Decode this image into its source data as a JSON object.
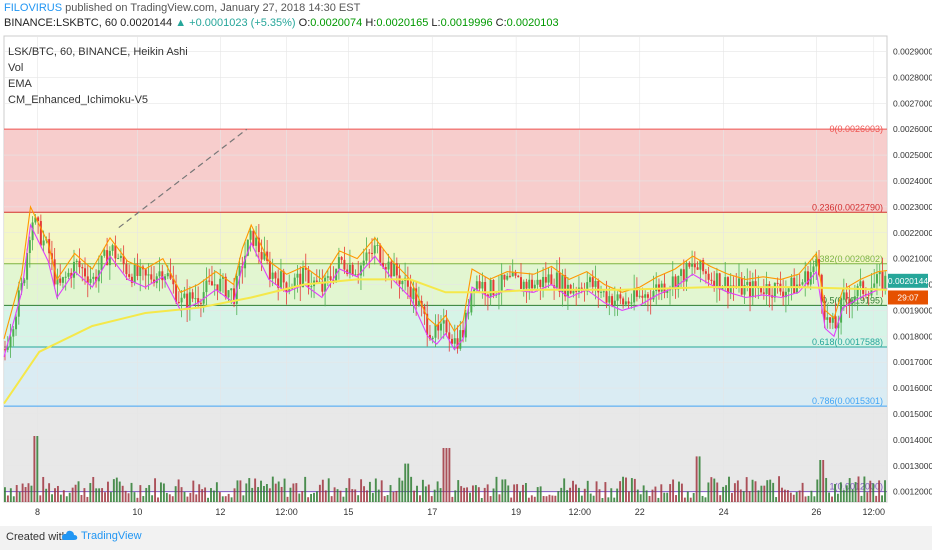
{
  "header": {
    "author": "FILOVIRUS",
    "published": " published on TradingView.com, January 27, 2018 14:30 EST",
    "symbol": "BINANCE:LSKBTC, 60",
    "last": "0.0020144",
    "change": "+0.0001023 (+5.35%)",
    "open_label": "O:",
    "open": "0.0020074",
    "high_label": "H:",
    "high": "0.0020165",
    "low_label": "L:",
    "low": "0.0019996",
    "close_label": "C:",
    "close": "0.0020103"
  },
  "legend": [
    "LSK/BTC, 60, BINANCE, Heikin Ashi",
    "Vol",
    "EMA",
    "CM_Enhanced_Ichimoku-V5"
  ],
  "footer": {
    "created": "Created with",
    "brand": "TradingView"
  },
  "colors": {
    "up": "#26a69a",
    "down": "#ef5350",
    "ema": "#f5e84a",
    "cloud_green": "#7cf07c",
    "cloud_red": "#c87050"
  },
  "chart_data": {
    "type": "candlestick",
    "yticks": [
      "0.0029000",
      "0.0028000",
      "0.0027000",
      "0.0026000",
      "0.0025000",
      "0.0024000",
      "0.0023000",
      "0.0022000",
      "0.0021000",
      "0.0020000",
      "0.0019000",
      "0.0018000",
      "0.0017000",
      "0.0016000",
      "0.0015000",
      "0.0014000",
      "0.0013000",
      "0.0012000"
    ],
    "ytick_values": [
      0.0029,
      0.0028,
      0.0027,
      0.0026,
      0.0025,
      0.0024,
      0.0023,
      0.0022,
      0.0021,
      0.002,
      0.0019,
      0.0018,
      0.0017,
      0.0016,
      0.0015,
      0.0014,
      0.0013,
      0.0012
    ],
    "xticks": [
      "8",
      "10",
      "12",
      "12:00",
      "15",
      "17",
      "19",
      "12:00",
      "22",
      "24",
      "26",
      "12:00"
    ],
    "xtick_frac": [
      0.038,
      0.151,
      0.245,
      0.32,
      0.39,
      0.485,
      0.58,
      0.652,
      0.72,
      0.815,
      0.92,
      0.985
    ],
    "ylim": [
      0.00116,
      0.00296
    ],
    "fib_levels": [
      {
        "ratio": "0",
        "price": 0.0026003,
        "label": "0(0.0026003)",
        "color": "#ef5350",
        "fill": "#f6c8c6"
      },
      {
        "ratio": "0.236",
        "price": 0.002279,
        "label": "0.236(0.0022790)",
        "color": "#d32f2f",
        "fill": "#f3f6c0"
      },
      {
        "ratio": "0.382",
        "price": 0.0020802,
        "label": "0.382(0.0020802)",
        "color": "#7cb342",
        "fill": "#dff5cc"
      },
      {
        "ratio": "0.5",
        "price": 0.0019195,
        "label": "0.5(0.0019195)",
        "color": "#2e7d32",
        "fill": "#d2f3e4"
      },
      {
        "ratio": "0.618",
        "price": 0.0017588,
        "label": "0.618(0.0017588)",
        "color": "#26a69a",
        "fill": "#d6eaf2"
      },
      {
        "ratio": "0.786",
        "price": 0.0015301,
        "label": "0.786(0.0015301)",
        "color": "#42a5f5",
        "fill": "#e6e6e6"
      },
      {
        "ratio": "1",
        "price": 0.0012,
        "label": "1(0.0012000)",
        "color": "#7e57c2",
        "fill": ""
      }
    ],
    "price_tags": [
      {
        "price": 0.0020144,
        "text": "0.0020144",
        "color": "#26a69a"
      },
      {
        "price": 0.00195,
        "text": "29:07",
        "color": "#e65100"
      }
    ],
    "close_path": [
      [
        0,
        0.00175
      ],
      [
        0.02,
        0.002
      ],
      [
        0.03,
        0.00226
      ],
      [
        0.05,
        0.00212
      ],
      [
        0.06,
        0.00198
      ],
      [
        0.08,
        0.00208
      ],
      [
        0.1,
        0.00202
      ],
      [
        0.12,
        0.00214
      ],
      [
        0.14,
        0.00205
      ],
      [
        0.16,
        0.00202
      ],
      [
        0.18,
        0.00206
      ],
      [
        0.2,
        0.00193
      ],
      [
        0.22,
        0.00196
      ],
      [
        0.24,
        0.00201
      ],
      [
        0.26,
        0.00196
      ],
      [
        0.27,
        0.0021
      ],
      [
        0.28,
        0.00219
      ],
      [
        0.3,
        0.00205
      ],
      [
        0.32,
        0.002
      ],
      [
        0.34,
        0.00203
      ],
      [
        0.36,
        0.00198
      ],
      [
        0.38,
        0.00209
      ],
      [
        0.4,
        0.00206
      ],
      [
        0.42,
        0.00214
      ],
      [
        0.44,
        0.00205
      ],
      [
        0.46,
        0.00198
      ],
      [
        0.48,
        0.00183
      ],
      [
        0.49,
        0.0018
      ],
      [
        0.5,
        0.00184
      ],
      [
        0.51,
        0.00178
      ],
      [
        0.52,
        0.00182
      ],
      [
        0.53,
        0.00202
      ],
      [
        0.55,
        0.00198
      ],
      [
        0.57,
        0.00201
      ],
      [
        0.6,
        0.002
      ],
      [
        0.62,
        0.00203
      ],
      [
        0.64,
        0.00198
      ],
      [
        0.66,
        0.00201
      ],
      [
        0.68,
        0.00196
      ],
      [
        0.7,
        0.00193
      ],
      [
        0.72,
        0.00195
      ],
      [
        0.74,
        0.00199
      ],
      [
        0.76,
        0.00202
      ],
      [
        0.78,
        0.00207
      ],
      [
        0.8,
        0.00203
      ],
      [
        0.82,
        0.002
      ],
      [
        0.84,
        0.00198
      ],
      [
        0.86,
        0.00199
      ],
      [
        0.88,
        0.00198
      ],
      [
        0.9,
        0.002
      ],
      [
        0.92,
        0.00208
      ],
      [
        0.93,
        0.00186
      ],
      [
        0.94,
        0.00183
      ],
      [
        0.95,
        0.00194
      ],
      [
        0.97,
        0.00198
      ],
      [
        0.99,
        0.00201
      ],
      [
        1.0,
        0.002014
      ]
    ],
    "ema_path": [
      [
        0,
        0.00154
      ],
      [
        0.04,
        0.00174
      ],
      [
        0.1,
        0.00184
      ],
      [
        0.16,
        0.00189
      ],
      [
        0.22,
        0.00191
      ],
      [
        0.28,
        0.00195
      ],
      [
        0.34,
        0.002
      ],
      [
        0.4,
        0.00202
      ],
      [
        0.46,
        0.00202
      ],
      [
        0.5,
        0.00197
      ],
      [
        0.55,
        0.00197
      ],
      [
        0.6,
        0.00198
      ],
      [
        0.7,
        0.00198
      ],
      [
        0.8,
        0.00199
      ],
      [
        0.9,
        0.00199
      ],
      [
        1.0,
        0.00198
      ]
    ],
    "volume_spikes": [
      [
        0.035,
        0.55
      ],
      [
        0.265,
        0.18
      ],
      [
        0.455,
        0.32
      ],
      [
        0.5,
        0.45
      ],
      [
        0.785,
        0.38
      ],
      [
        0.925,
        0.35
      ]
    ]
  }
}
